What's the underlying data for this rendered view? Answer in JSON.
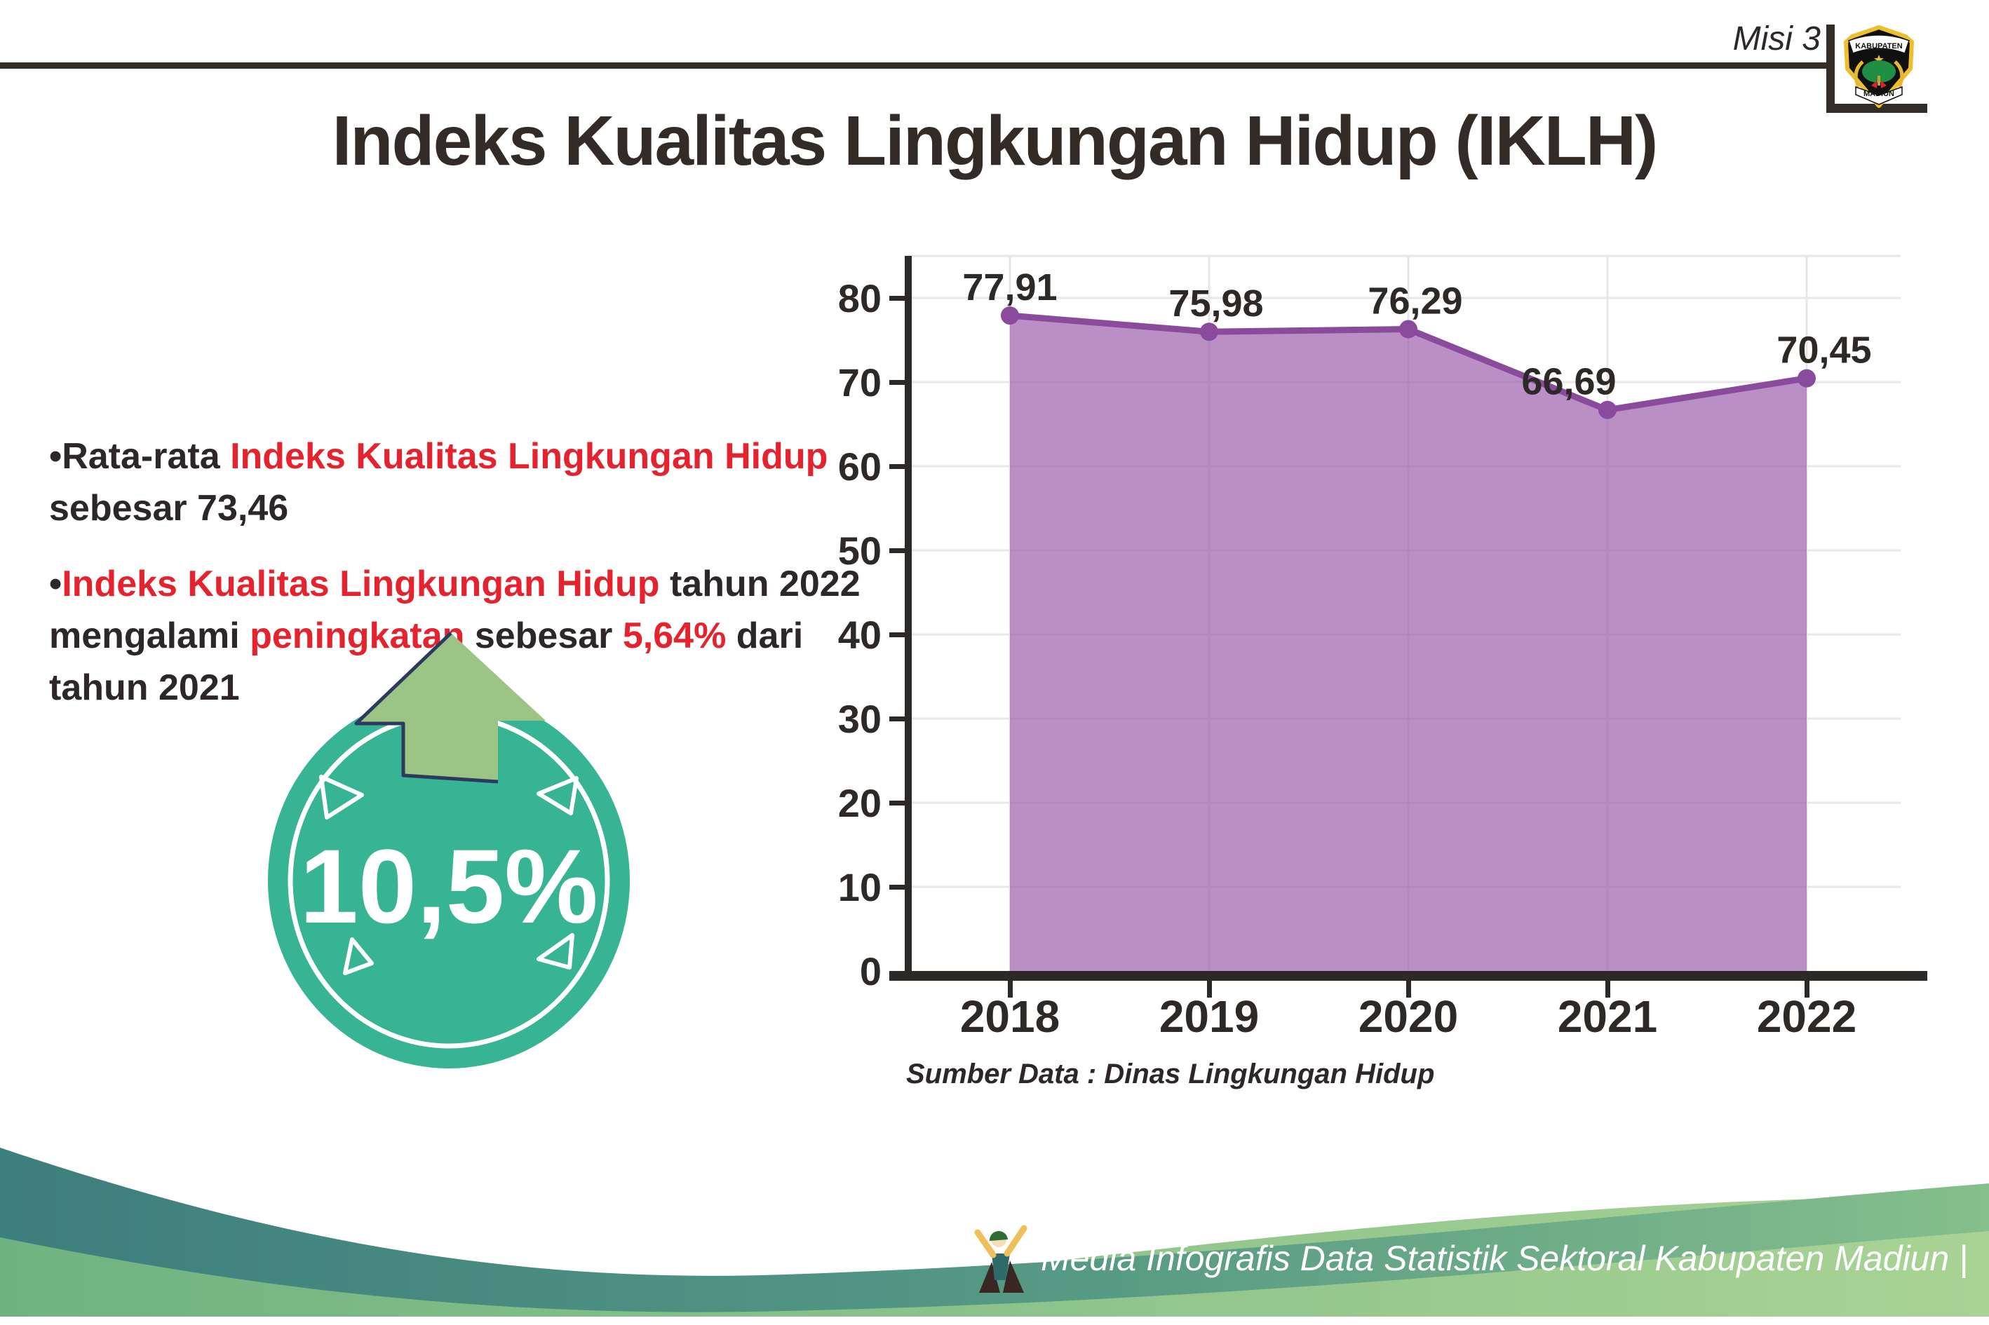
{
  "header": {
    "misi": "Misi 3",
    "logo_top": "KABUPATEN",
    "logo_bottom": "MADIUN"
  },
  "title": "Indeks Kualitas Lingkungan Hidup (IKLH)",
  "bullets": [
    {
      "segments": [
        {
          "t": "•Rata-rata ",
          "red": false
        },
        {
          "t": "Indeks Kualitas Lingkungan Hidup",
          "red": true
        },
        {
          "t": "\nsebesar 73,46",
          "red": false
        }
      ]
    },
    {
      "segments": [
        {
          "t": "•",
          "red": false
        },
        {
          "t": "Indeks Kualitas Lingkungan Hidup",
          "red": true
        },
        {
          "t": " tahun 2022\nmengalami ",
          "red": false
        },
        {
          "t": "peningkatan",
          "red": true
        },
        {
          "t": " sebesar ",
          "red": false
        },
        {
          "t": "5,64%",
          "red": true
        },
        {
          "t": " dari\ntahun 2021",
          "red": false
        }
      ]
    }
  ],
  "badge": {
    "value": "10,5%",
    "circle_color": "#36b494",
    "arrow_color": "#9cc585",
    "arrow_outline": "#2b3a5e"
  },
  "chart_data": {
    "type": "area",
    "title": "",
    "xlabel": "",
    "ylabel": "",
    "x": [
      "2018",
      "2019",
      "2020",
      "2021",
      "2022"
    ],
    "series": [
      {
        "name": "IKLH",
        "values": [
          77.91,
          75.98,
          76.29,
          66.69,
          70.45
        ]
      }
    ],
    "point_labels": [
      "77,91",
      "75,98",
      "76,29",
      "66,69",
      "70,45"
    ],
    "ylim": [
      0,
      80
    ],
    "yticks": [
      0,
      10,
      20,
      30,
      40,
      50,
      60,
      70,
      80
    ],
    "grid": true,
    "legend": "none",
    "source": "Sumber Data : Dinas Lingkungan Hidup",
    "colors": {
      "fill": "rgba(160,100,176,0.72)",
      "line": "#8a4b9c",
      "marker": "#8a4b9c",
      "grid": "#e7e7e7",
      "axis": "#2d2926",
      "text": "#2d2926"
    }
  },
  "footer": {
    "text": "Media Infografis Data Statistik Sektoral Kabupaten Madiun |"
  }
}
